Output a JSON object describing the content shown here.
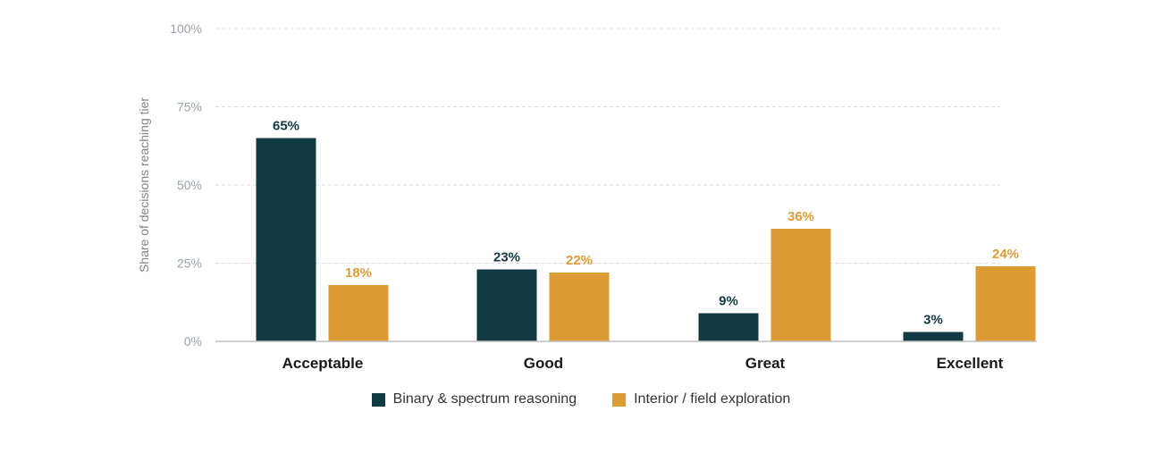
{
  "colors": {
    "series_0": "#123a45",
    "series_1": "#dd9b35",
    "grid": "#dcdcdc",
    "axis": "#bfbfbf"
  },
  "chart_data": {
    "type": "bar",
    "categories": [
      "Acceptable",
      "Good",
      "Great",
      "Excellent"
    ],
    "series": [
      {
        "name": "Binary & spectrum reasoning",
        "values": [
          65,
          23,
          9,
          3
        ],
        "labels": [
          "65%",
          "23%",
          "9%",
          "3%"
        ]
      },
      {
        "name": "Interior / field exploration",
        "values": [
          18,
          22,
          36,
          24
        ],
        "labels": [
          "18%",
          "22%",
          "36%",
          "24%"
        ]
      }
    ],
    "y_ticks": [
      0,
      25,
      50,
      75,
      100
    ],
    "y_tick_labels": [
      "0%",
      "25%",
      "50%",
      "75%",
      "100%"
    ],
    "ylabel": "Share of decisions reaching tier",
    "ylim": [
      0,
      100
    ],
    "grid": "horizontal dashed",
    "legend_position": "bottom-center"
  }
}
